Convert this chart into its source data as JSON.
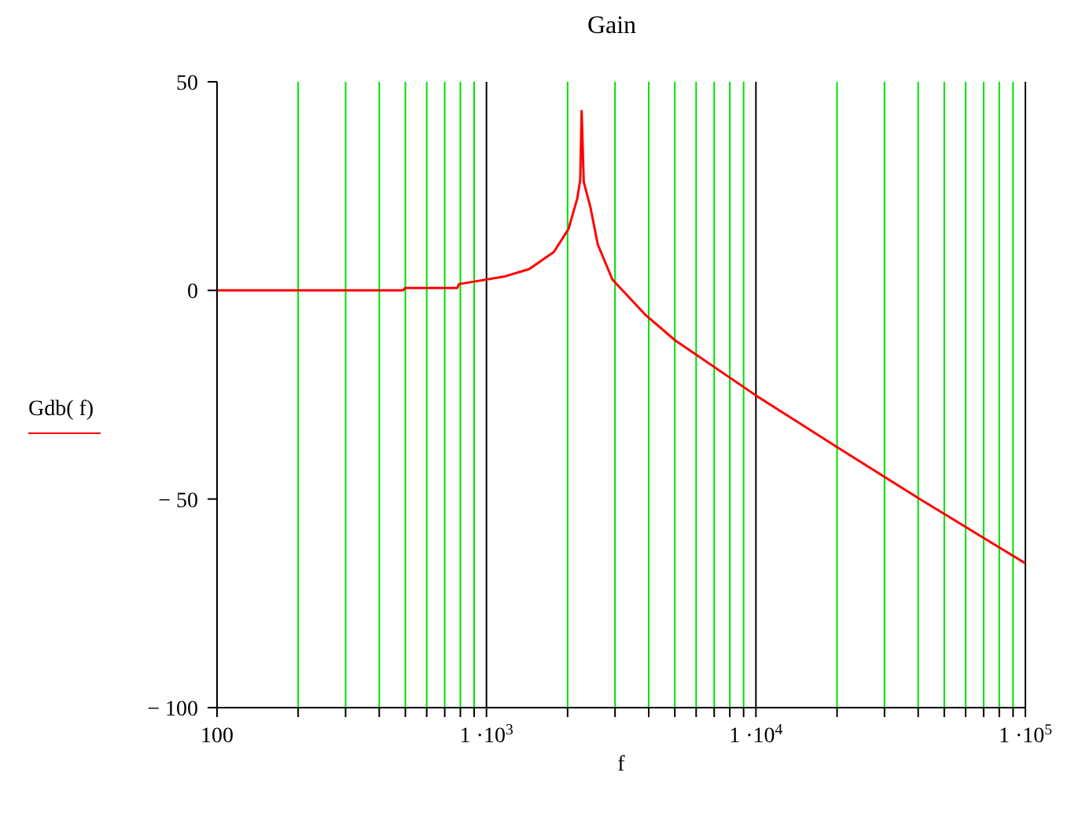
{
  "chart_data": {
    "type": "line",
    "title": "Gain",
    "xlabel": "f",
    "log": "x",
    "grid": "x",
    "legend": "left",
    "marker": "none",
    "line_style": "solid",
    "x": [
      100,
      490,
      500,
      780,
      790,
      1161,
      1440,
      1778,
      2015,
      2172,
      2228,
      2255,
      2296,
      2430,
      2589,
      2933,
      3910,
      5020,
      10120,
      20400,
      40600,
      100000
    ],
    "series": [
      {
        "name": "Gdb( f)",
        "color": "#ff0000",
        "values": [
          0,
          0,
          0.6,
          0.6,
          1.5,
          3.3,
          5.1,
          9.2,
          14.7,
          22,
          26.5,
          43,
          26,
          20,
          11,
          2.6,
          -6,
          -12,
          -25.4,
          -37.9,
          -50,
          -65.4
        ]
      }
    ],
    "xlim": [
      100,
      100000
    ],
    "xticks": [
      100,
      {
        "value": 200,
        "label": null
      },
      {
        "value": 300,
        "label": null
      },
      {
        "value": 400,
        "label": null
      },
      {
        "value": 500,
        "label": null
      },
      {
        "value": 600,
        "label": null
      },
      {
        "value": 700,
        "label": null
      },
      {
        "value": 800,
        "label": null
      },
      {
        "value": 900,
        "label": null
      },
      {
        "value": 1000,
        "label": "1 ·10$^{3}$"
      },
      {
        "value": 2000,
        "label": null
      },
      {
        "value": 3000,
        "label": null
      },
      {
        "value": 4000,
        "label": null
      },
      {
        "value": 5000,
        "label": null
      },
      {
        "value": 6000,
        "label": null
      },
      {
        "value": 7000,
        "label": null
      },
      {
        "value": 8000,
        "label": null
      },
      {
        "value": 9000,
        "label": null
      },
      {
        "value": 10000,
        "label": "1 ·10$^{4}$"
      },
      {
        "value": 20000,
        "label": null
      },
      {
        "value": 30000,
        "label": null
      },
      {
        "value": 40000,
        "label": null
      },
      {
        "value": 50000,
        "label": null
      },
      {
        "value": 60000,
        "label": null
      },
      {
        "value": 70000,
        "label": null
      },
      {
        "value": 80000,
        "label": null
      },
      {
        "value": 90000,
        "label": null
      },
      {
        "value": 100000,
        "label": "1 ·10$^{5}$"
      }
    ],
    "ylim": [
      -100,
      50
    ],
    "yticks": [
      50,
      0,
      {
        "value": -50,
        "label": "− 50"
      },
      {
        "value": -100,
        "label": "− 100"
      }
    ]
  }
}
